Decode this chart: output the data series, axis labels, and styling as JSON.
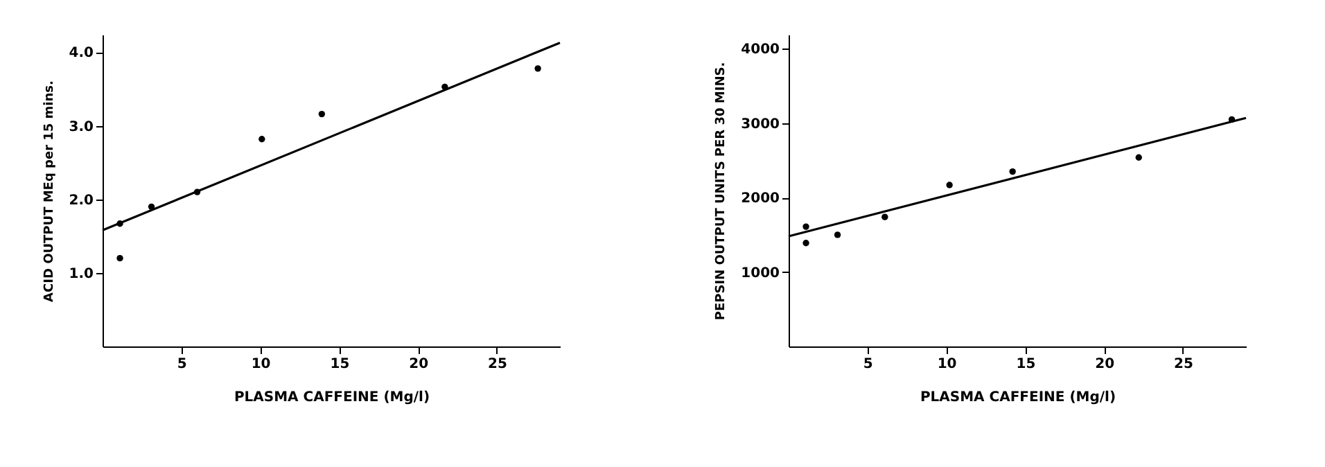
{
  "chart_data": [
    {
      "type": "scatter",
      "xlabel": "PLASMA CAFFEINE (Mg/l)",
      "ylabel": "ACID OUTPUT MEq per 15 mins.",
      "xlim": [
        0,
        29
      ],
      "ylim": [
        0,
        4.24
      ],
      "xticks": [
        5,
        10,
        15,
        20,
        25
      ],
      "yticks": [
        {
          "value": 1,
          "label": "1.0"
        },
        {
          "value": 2,
          "label": "2.0"
        },
        {
          "value": 3,
          "label": "3.0"
        },
        {
          "value": 4,
          "label": "4.0"
        }
      ],
      "grid": false,
      "series": [
        {
          "marker": "circle",
          "color": "#000000",
          "x": [
            1.1,
            1.1,
            3.1,
            6.0,
            10.1,
            13.9,
            21.7,
            27.6
          ],
          "values": [
            1.2,
            1.67,
            1.9,
            2.1,
            2.82,
            3.16,
            3.53,
            3.78
          ]
        },
        {
          "type": "line",
          "color": "#000000",
          "line_style": "solid",
          "x": [
            0,
            29
          ],
          "values": [
            1.58,
            4.13
          ]
        }
      ]
    },
    {
      "type": "scatter",
      "xlabel": "PLASMA CAFFEINE (Mg/l)",
      "ylabel": "PEPSIN OUTPUT UNITS PER 30 MINS.",
      "xlim": [
        0,
        29
      ],
      "ylim": [
        0,
        4190
      ],
      "xticks": [
        5,
        10,
        15,
        20,
        25
      ],
      "yticks": [
        1000,
        2000,
        3000,
        4000
      ],
      "grid": false,
      "series": [
        {
          "marker": "circle",
          "color": "#000000",
          "x": [
            1.1,
            1.1,
            3.1,
            6.1,
            10.2,
            14.2,
            22.2,
            28.1
          ],
          "values": [
            1610,
            1390,
            1500,
            1740,
            2170,
            2350,
            2540,
            3050
          ]
        },
        {
          "type": "line",
          "color": "#000000",
          "line_style": "solid",
          "x": [
            0,
            29
          ],
          "values": [
            1480,
            3070
          ]
        }
      ]
    }
  ]
}
